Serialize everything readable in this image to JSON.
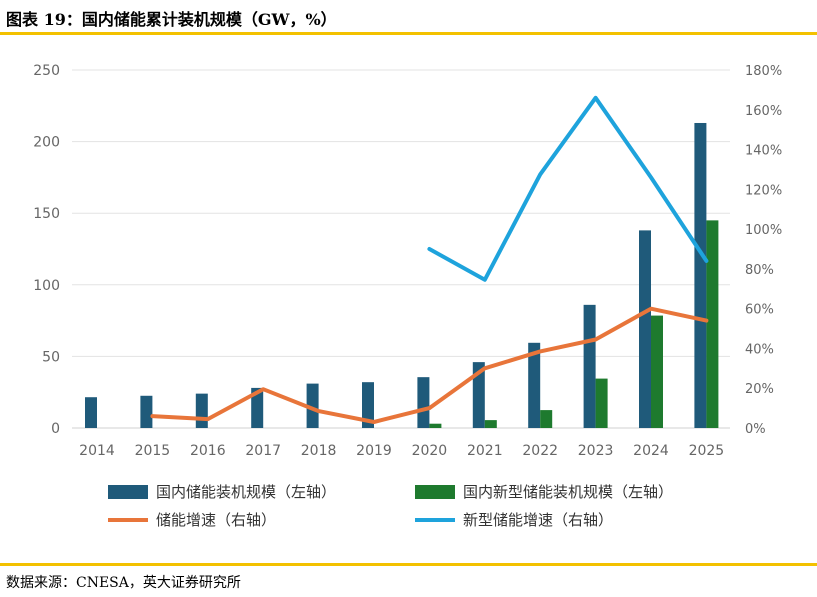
{
  "header": {
    "title": "图表 19：国内储能累计装机规模（GW，%）"
  },
  "footer": {
    "source": "数据来源：CNESA，英大证券研究所"
  },
  "colors": {
    "domestic_bar": "#1f5a7a",
    "new_type_bar": "#1e7a2e",
    "growth_line": "#e8753a",
    "new_type_growth_line": "#1ea3dc",
    "accent_rule": "#f3c100",
    "gridline": "#e3e3e3"
  },
  "chart_data": {
    "type": "bar",
    "categories": [
      "2014",
      "2015",
      "2016",
      "2017",
      "2018",
      "2019",
      "2020",
      "2021",
      "2022",
      "2023",
      "2024",
      "2025"
    ],
    "y_left_ticks": [
      "0",
      "50",
      "100",
      "150",
      "200",
      "250"
    ],
    "y_right_ticks": [
      "0%",
      "20%",
      "40%",
      "60%",
      "80%",
      "100%",
      "120%",
      "140%",
      "160%",
      "180%"
    ],
    "ylim_left": [
      0,
      250
    ],
    "ylim_right": [
      0,
      180
    ],
    "grid": true,
    "legend_position": "bottom",
    "series": [
      {
        "name": "国内储能装机规模（左轴）",
        "type": "bar",
        "axis": "left",
        "color": "#1f5a7a",
        "values": [
          21.5,
          22.5,
          24,
          28,
          31,
          32,
          35.5,
          46,
          59.5,
          86,
          138,
          213
        ]
      },
      {
        "name": "国内新型储能装机规模（左轴）",
        "type": "bar",
        "axis": "left",
        "color": "#1e7a2e",
        "values": [
          null,
          null,
          null,
          null,
          null,
          null,
          3,
          5.5,
          12.5,
          34.5,
          78.5,
          145
        ]
      },
      {
        "name": "储能增速（右轴）",
        "type": "line",
        "axis": "right",
        "color": "#e8753a",
        "values": [
          null,
          6,
          4.5,
          19.5,
          8.5,
          3,
          10,
          30,
          38.5,
          44.5,
          60,
          54
        ]
      },
      {
        "name": "新型储能增速（右轴）",
        "type": "line",
        "axis": "right",
        "color": "#1ea3dc",
        "values": [
          null,
          null,
          null,
          null,
          null,
          null,
          90,
          74.5,
          127.5,
          166,
          126,
          84
        ]
      }
    ]
  }
}
